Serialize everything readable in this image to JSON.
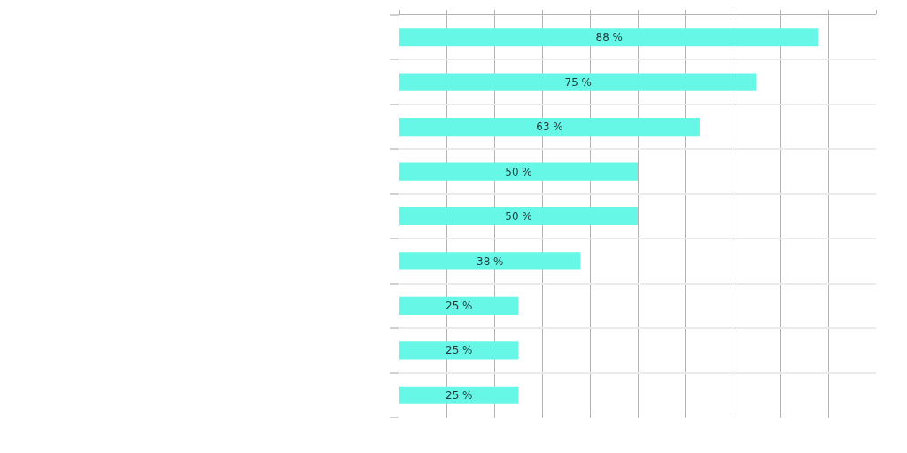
{
  "chart_data": {
    "type": "bar",
    "orientation": "horizontal",
    "categories": [
      null,
      null,
      null,
      null,
      null,
      null,
      null,
      null,
      null
    ],
    "values": [
      88,
      75,
      63,
      50,
      50,
      38,
      25,
      25,
      25
    ],
    "value_labels": [
      "88 %",
      "75 %",
      "63 %",
      "50 %",
      "50 %",
      "38 %",
      "25 %",
      "25 %",
      "25 %"
    ],
    "color": "#66f7e6",
    "xlim": [
      0,
      100
    ],
    "xticks": [
      {
        "value": 0,
        "label": null
      },
      {
        "value": 10,
        "label": null
      },
      {
        "value": 20,
        "label": null
      },
      {
        "value": 30,
        "label": null
      },
      {
        "value": 40,
        "label": null
      },
      {
        "value": 50,
        "label": null
      },
      {
        "value": 60,
        "label": null
      },
      {
        "value": 70,
        "label": null
      },
      {
        "value": 80,
        "label": null
      },
      {
        "value": 90,
        "label": null
      },
      {
        "value": 100,
        "label": null
      }
    ],
    "grid": true
  }
}
